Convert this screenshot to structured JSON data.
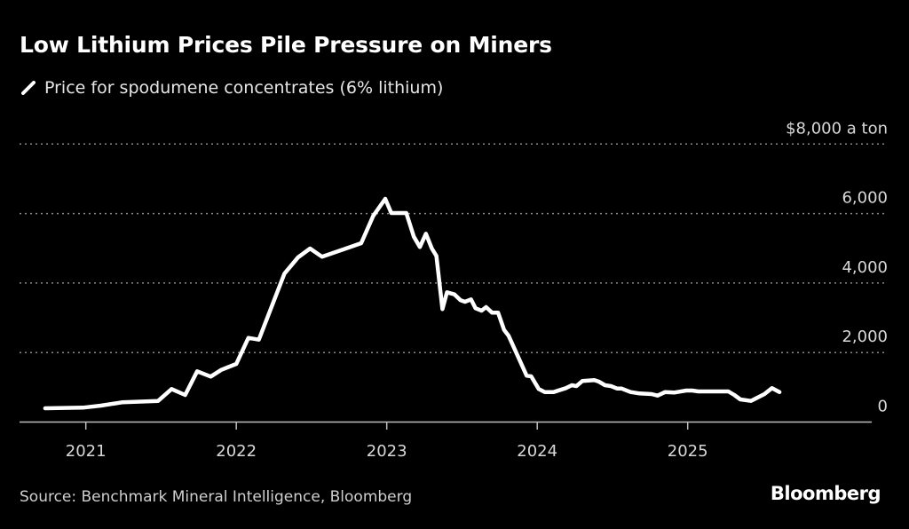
{
  "title": "Low Lithium Prices Pile Pressure on Miners",
  "source": "Source: Benchmark Mineral Intelligence, Bloomberg",
  "logo": "Bloomberg",
  "chart_data": {
    "type": "line",
    "title": "Low Lithium Prices Pile Pressure on Miners",
    "ylabel": "",
    "y_unit_label": "$8,000 a ton",
    "ylim": [
      0,
      8000
    ],
    "xlim": [
      2020.6,
      2026.2
    ],
    "yticks": [
      0,
      2000,
      4000,
      6000,
      8000
    ],
    "ytick_labels": [
      "0",
      "2,000",
      "4,000",
      "6,000",
      "$8,000 a ton"
    ],
    "xticks": [
      2021,
      2022,
      2023,
      2024,
      2025
    ],
    "xtick_labels": [
      "2021",
      "2022",
      "2023",
      "2024",
      "2025"
    ],
    "grid": "horizontal dotted",
    "legend_placement": "top-left",
    "colors": {
      "background": "#000000",
      "line": "#ffffff",
      "grid": "#8a8a8a"
    },
    "series": [
      {
        "name": "Price for spodumene concentrates (6% lithium)",
        "x": [
          2020.73,
          2020.98,
          2021.1,
          2021.24,
          2021.48,
          2021.57,
          2021.66,
          2021.74,
          2021.83,
          2021.9,
          2022.0,
          2022.08,
          2022.15,
          2022.32,
          2022.41,
          2022.49,
          2022.57,
          2022.83,
          2022.91,
          2022.99,
          2023.03,
          2023.13,
          2023.18,
          2023.22,
          2023.26,
          2023.3,
          2023.33,
          2023.37,
          2023.4,
          2023.45,
          2023.49,
          2023.52,
          2023.56,
          2023.59,
          2023.63,
          2023.66,
          2023.7,
          2023.74,
          2023.78,
          2023.81,
          2023.93,
          2023.96,
          2024.01,
          2024.05,
          2024.11,
          2024.19,
          2024.23,
          2024.26,
          2024.3,
          2024.38,
          2024.41,
          2024.45,
          2024.49,
          2024.53,
          2024.56,
          2024.62,
          2024.68,
          2024.76,
          2024.8,
          2024.85,
          2024.91,
          2024.99,
          2025.03,
          2025.07,
          2025.27,
          2025.31,
          2025.35,
          2025.42,
          2025.51,
          2025.56,
          2025.61
        ],
        "y": [
          396,
          414,
          472,
          567,
          608,
          950,
          779,
          1461,
          1308,
          1502,
          1673,
          2421,
          2370,
          4270,
          4738,
          4994,
          4756,
          5147,
          5931,
          6424,
          6015,
          6015,
          5333,
          5036,
          5420,
          4994,
          4781,
          3249,
          3734,
          3673,
          3504,
          3461,
          3530,
          3274,
          3206,
          3308,
          3147,
          3147,
          2651,
          2481,
          1333,
          1315,
          950,
          864,
          864,
          976,
          1060,
          1034,
          1180,
          1206,
          1162,
          1060,
          1034,
          966,
          966,
          864,
          822,
          805,
          761,
          864,
          848,
          907,
          907,
          881,
          881,
          779,
          651,
          608,
          805,
          976,
          864
        ]
      }
    ]
  }
}
